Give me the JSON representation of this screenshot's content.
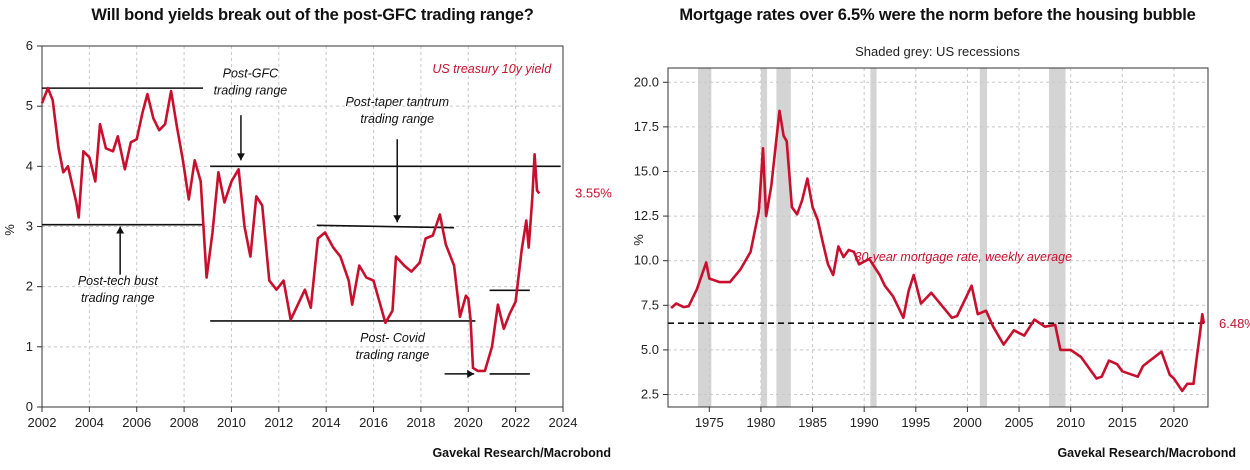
{
  "chart_data": [
    {
      "type": "line",
      "title": "Will bond yields break out of the post-GFC trading range?",
      "ylabel": "%",
      "source": "Gavekal Research/Macrobond",
      "xlim": [
        2002,
        2024
      ],
      "ylim": [
        0,
        6
      ],
      "x_ticks": [
        "2002",
        "2004",
        "2006",
        "2008",
        "2010",
        "2012",
        "2014",
        "2016",
        "2018",
        "2020",
        "2022",
        "2024"
      ],
      "y_ticks": [
        "0",
        "1",
        "2",
        "3",
        "4",
        "5",
        "6"
      ],
      "grid": true,
      "series": [
        {
          "name": "US treasury 10y yield",
          "color": "#c8102e",
          "points": [
            [
              2002.0,
              5.05
            ],
            [
              2002.25,
              5.3
            ],
            [
              2002.45,
              5.1
            ],
            [
              2002.7,
              4.3
            ],
            [
              2002.9,
              3.9
            ],
            [
              2003.1,
              4.0
            ],
            [
              2003.45,
              3.4
            ],
            [
              2003.55,
              3.15
            ],
            [
              2003.75,
              4.25
            ],
            [
              2004.0,
              4.15
            ],
            [
              2004.25,
              3.75
            ],
            [
              2004.45,
              4.7
            ],
            [
              2004.7,
              4.3
            ],
            [
              2005.0,
              4.25
            ],
            [
              2005.2,
              4.5
            ],
            [
              2005.5,
              3.95
            ],
            [
              2005.75,
              4.4
            ],
            [
              2006.0,
              4.45
            ],
            [
              2006.25,
              4.9
            ],
            [
              2006.45,
              5.2
            ],
            [
              2006.7,
              4.8
            ],
            [
              2006.95,
              4.6
            ],
            [
              2007.2,
              4.7
            ],
            [
              2007.45,
              5.25
            ],
            [
              2007.7,
              4.65
            ],
            [
              2007.95,
              4.1
            ],
            [
              2008.2,
              3.45
            ],
            [
              2008.45,
              4.1
            ],
            [
              2008.7,
              3.75
            ],
            [
              2008.95,
              2.15
            ],
            [
              2009.2,
              2.9
            ],
            [
              2009.45,
              3.9
            ],
            [
              2009.7,
              3.4
            ],
            [
              2010.0,
              3.75
            ],
            [
              2010.3,
              3.95
            ],
            [
              2010.55,
              3.0
            ],
            [
              2010.8,
              2.5
            ],
            [
              2011.05,
              3.5
            ],
            [
              2011.3,
              3.35
            ],
            [
              2011.6,
              2.1
            ],
            [
              2011.9,
              1.95
            ],
            [
              2012.2,
              2.1
            ],
            [
              2012.5,
              1.45
            ],
            [
              2012.8,
              1.7
            ],
            [
              2013.1,
              1.95
            ],
            [
              2013.35,
              1.65
            ],
            [
              2013.65,
              2.8
            ],
            [
              2013.95,
              2.9
            ],
            [
              2014.3,
              2.65
            ],
            [
              2014.6,
              2.5
            ],
            [
              2014.95,
              2.1
            ],
            [
              2015.1,
              1.7
            ],
            [
              2015.4,
              2.35
            ],
            [
              2015.7,
              2.15
            ],
            [
              2016.0,
              2.1
            ],
            [
              2016.5,
              1.4
            ],
            [
              2016.8,
              1.6
            ],
            [
              2016.95,
              2.5
            ],
            [
              2017.3,
              2.35
            ],
            [
              2017.6,
              2.25
            ],
            [
              2017.95,
              2.4
            ],
            [
              2018.2,
              2.8
            ],
            [
              2018.5,
              2.85
            ],
            [
              2018.8,
              3.2
            ],
            [
              2019.05,
              2.7
            ],
            [
              2019.4,
              2.35
            ],
            [
              2019.65,
              1.5
            ],
            [
              2019.9,
              1.85
            ],
            [
              2020.0,
              1.8
            ],
            [
              2020.1,
              1.45
            ],
            [
              2020.2,
              0.65
            ],
            [
              2020.4,
              0.6
            ],
            [
              2020.7,
              0.6
            ],
            [
              2021.0,
              1.0
            ],
            [
              2021.25,
              1.7
            ],
            [
              2021.5,
              1.3
            ],
            [
              2021.75,
              1.55
            ],
            [
              2022.0,
              1.75
            ],
            [
              2022.25,
              2.6
            ],
            [
              2022.45,
              3.1
            ],
            [
              2022.55,
              2.65
            ],
            [
              2022.7,
              3.45
            ],
            [
              2022.8,
              4.2
            ],
            [
              2022.9,
              3.6
            ],
            [
              2023.0,
              3.55
            ]
          ]
        }
      ],
      "reference_lines": [
        {
          "from": [
            2002.0,
            5.3
          ],
          "to": [
            2008.8,
            5.3
          ]
        },
        {
          "from": [
            2002.0,
            3.03
          ],
          "to": [
            2008.8,
            3.03
          ]
        },
        {
          "from": [
            2009.1,
            4.0
          ],
          "to": [
            2023.9,
            4.0
          ]
        },
        {
          "from": [
            2013.6,
            3.02
          ],
          "to": [
            2019.4,
            2.98
          ]
        },
        {
          "from": [
            2009.1,
            1.43
          ],
          "to": [
            2020.3,
            1.43
          ]
        },
        {
          "from": [
            2020.9,
            1.94
          ],
          "to": [
            2022.6,
            1.94
          ]
        },
        {
          "from": [
            2020.9,
            0.55
          ],
          "to": [
            2022.6,
            0.55
          ]
        }
      ],
      "annotations": [
        {
          "id": "series-label",
          "text": "US treasury 10y yield",
          "color": "#c8102e"
        },
        {
          "id": "last-value",
          "text": "3.55%",
          "color": "#c8102e"
        },
        {
          "id": "post-gfc",
          "lines": [
            "Post-GFC",
            "trading range"
          ]
        },
        {
          "id": "post-taper",
          "lines": [
            "Post-taper tantrum",
            "trading range"
          ]
        },
        {
          "id": "post-tech",
          "lines": [
            "Post-tech bust",
            "trading range"
          ]
        },
        {
          "id": "post-covid",
          "lines": [
            "Post- Covid",
            "trading range"
          ]
        }
      ]
    },
    {
      "type": "line",
      "title": "Mortgage rates over 6.5% were the norm before the housing bubble",
      "subtitle": "Shaded grey: US recessions",
      "ylabel": "%",
      "source": "Gavekal Research/Macrobond",
      "xlim": [
        1971,
        2023.3
      ],
      "ylim": [
        1.8,
        20.8
      ],
      "x_ticks": [
        "1975",
        "1980",
        "1985",
        "1990",
        "1995",
        "2000",
        "2005",
        "2010",
        "2015",
        "2020"
      ],
      "y_ticks": [
        "2.5",
        "5.0",
        "7.5",
        "10.0",
        "12.5",
        "15.0",
        "17.5",
        "20.0"
      ],
      "grid": true,
      "threshold": {
        "value": 6.5,
        "style": "dashed"
      },
      "recessions": [
        [
          1973.9,
          1975.2
        ],
        [
          1980.0,
          1980.6
        ],
        [
          1981.5,
          1982.9
        ],
        [
          1990.6,
          1991.2
        ],
        [
          2001.2,
          2001.9
        ],
        [
          2007.9,
          2009.5
        ]
      ],
      "series": [
        {
          "name": "30-year mortgage rate, weekly average",
          "color": "#c8102e",
          "points": [
            [
              1971.3,
              7.35
            ],
            [
              1971.8,
              7.6
            ],
            [
              1972.5,
              7.4
            ],
            [
              1973.0,
              7.45
            ],
            [
              1973.8,
              8.4
            ],
            [
              1974.7,
              9.9
            ],
            [
              1975.0,
              9.0
            ],
            [
              1976.0,
              8.8
            ],
            [
              1977.0,
              8.8
            ],
            [
              1978.0,
              9.5
            ],
            [
              1979.0,
              10.5
            ],
            [
              1979.8,
              12.8
            ],
            [
              1980.2,
              16.3
            ],
            [
              1980.5,
              12.5
            ],
            [
              1981.0,
              14.2
            ],
            [
              1981.8,
              18.4
            ],
            [
              1982.2,
              17.0
            ],
            [
              1982.5,
              16.7
            ],
            [
              1983.0,
              13.0
            ],
            [
              1983.5,
              12.6
            ],
            [
              1984.0,
              13.4
            ],
            [
              1984.5,
              14.6
            ],
            [
              1985.0,
              13.0
            ],
            [
              1985.5,
              12.3
            ],
            [
              1986.0,
              11.0
            ],
            [
              1986.5,
              9.8
            ],
            [
              1987.0,
              9.2
            ],
            [
              1987.5,
              10.8
            ],
            [
              1988.0,
              10.2
            ],
            [
              1988.5,
              10.6
            ],
            [
              1989.0,
              10.5
            ],
            [
              1989.5,
              9.8
            ],
            [
              1990.5,
              10.1
            ],
            [
              1991.5,
              9.2
            ],
            [
              1992.0,
              8.6
            ],
            [
              1992.8,
              8.0
            ],
            [
              1993.8,
              6.8
            ],
            [
              1994.3,
              8.3
            ],
            [
              1994.8,
              9.2
            ],
            [
              1995.5,
              7.6
            ],
            [
              1996.5,
              8.2
            ],
            [
              1997.5,
              7.5
            ],
            [
              1998.5,
              6.8
            ],
            [
              1999.0,
              6.9
            ],
            [
              2000.0,
              8.1
            ],
            [
              2000.4,
              8.6
            ],
            [
              2001.0,
              7.0
            ],
            [
              2001.8,
              7.2
            ],
            [
              2002.5,
              6.3
            ],
            [
              2003.5,
              5.3
            ],
            [
              2004.5,
              6.1
            ],
            [
              2005.5,
              5.8
            ],
            [
              2006.5,
              6.7
            ],
            [
              2007.5,
              6.3
            ],
            [
              2008.5,
              6.4
            ],
            [
              2009.0,
              5.0
            ],
            [
              2010.0,
              5.0
            ],
            [
              2011.0,
              4.6
            ],
            [
              2012.5,
              3.4
            ],
            [
              2013.0,
              3.5
            ],
            [
              2013.7,
              4.4
            ],
            [
              2014.5,
              4.2
            ],
            [
              2015.0,
              3.8
            ],
            [
              2016.5,
              3.5
            ],
            [
              2017.0,
              4.1
            ],
            [
              2018.8,
              4.9
            ],
            [
              2019.6,
              3.6
            ],
            [
              2020.0,
              3.4
            ],
            [
              2020.8,
              2.7
            ],
            [
              2021.3,
              3.1
            ],
            [
              2021.9,
              3.1
            ],
            [
              2022.2,
              4.5
            ],
            [
              2022.5,
              5.8
            ],
            [
              2022.75,
              7.0
            ],
            [
              2022.9,
              6.48
            ]
          ]
        }
      ],
      "annotations": [
        {
          "id": "series-label",
          "text": "30-year mortgage rate, weekly average",
          "color": "#c8102e"
        },
        {
          "id": "last-value",
          "text": "6.48%",
          "color": "#c8102e"
        }
      ]
    }
  ]
}
